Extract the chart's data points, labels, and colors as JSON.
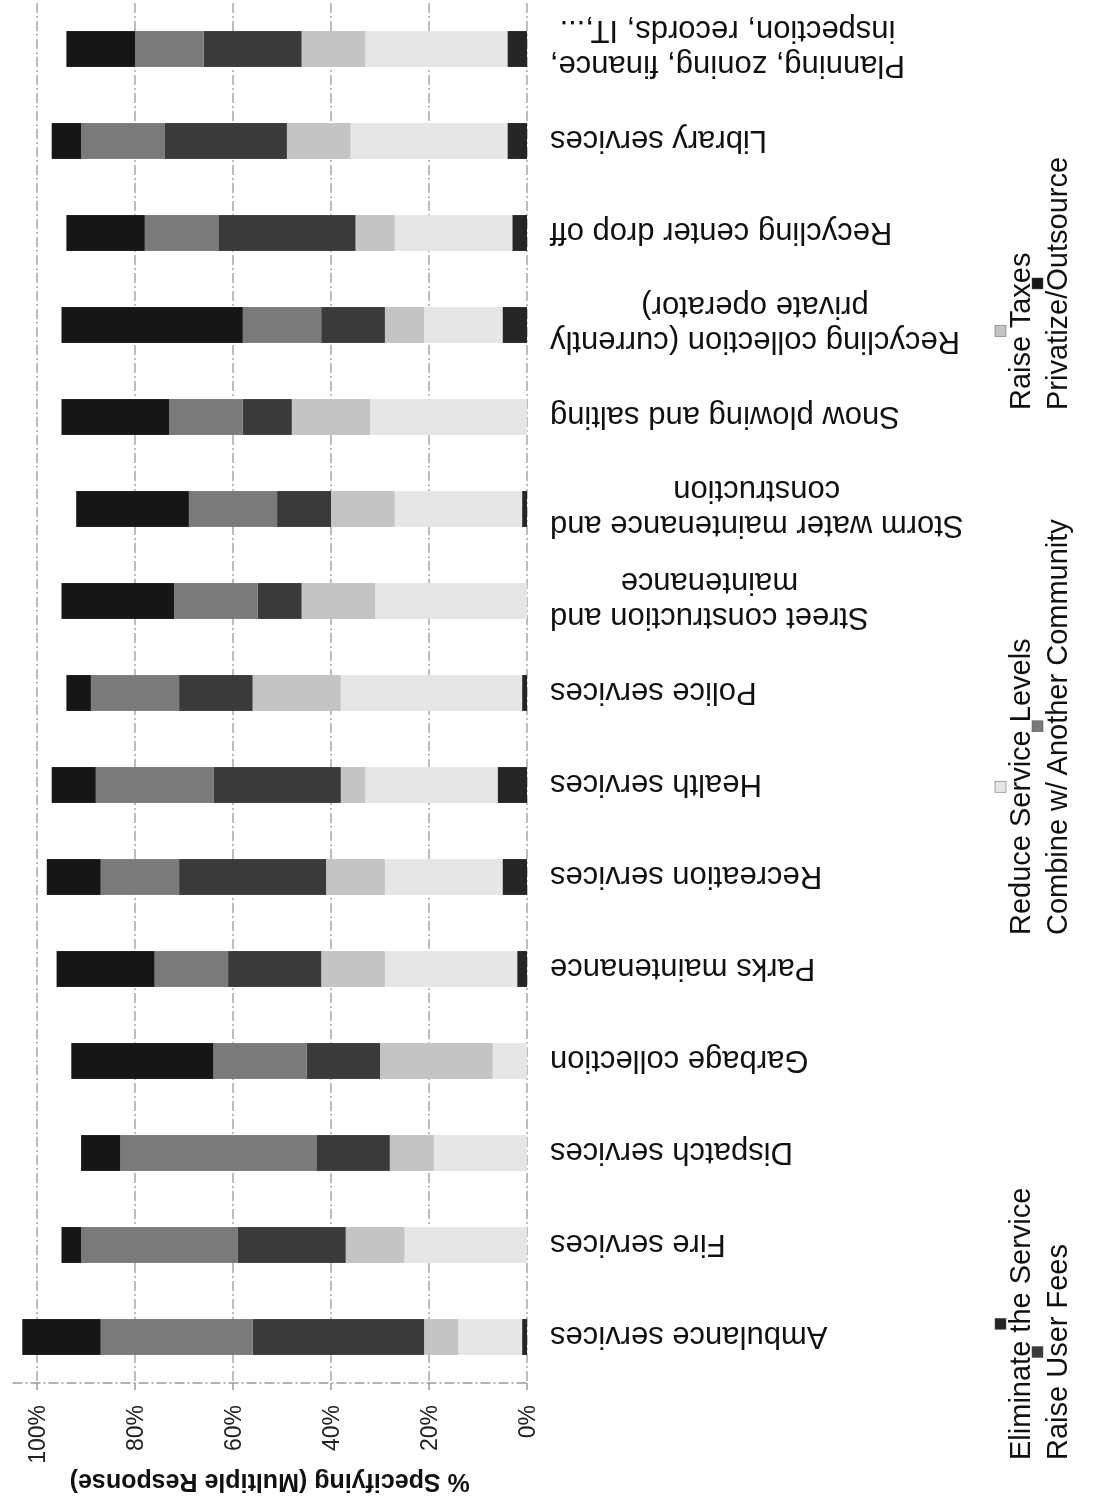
{
  "chart_data": {
    "type": "bar",
    "stacked": true,
    "orientation": "horizontal",
    "xlabel": "% Specifying (Multiple Response)",
    "categories": [
      "Planning, zoning, finance, inspection, records, IT,...",
      "Library services",
      "Recycling center drop off",
      "Recycling collection (currently private operator)",
      "Snow plowing and salting",
      "Storm water maintenance and construction",
      "Street construction and maintenance",
      "Police services",
      "Health services",
      "Recreation services",
      "Parks maintenance",
      "Garbage collection",
      "Dispatch services",
      "Fire services",
      "Ambulance services"
    ],
    "series": [
      {
        "name": "Eliminate the Service",
        "color": "#262626",
        "values": [
          4,
          4,
          3,
          5,
          0,
          1,
          0,
          1,
          6,
          5,
          2,
          0,
          0,
          0,
          1
        ]
      },
      {
        "name": "Reduce Service Levels",
        "color": "#e6e6e6",
        "values": [
          29,
          32,
          24,
          16,
          32,
          26,
          31,
          37,
          27,
          24,
          27,
          7,
          19,
          25,
          13
        ]
      },
      {
        "name": "Raise Taxes",
        "color": "#c4c4c4",
        "values": [
          13,
          13,
          8,
          8,
          16,
          13,
          15,
          18,
          5,
          12,
          13,
          23,
          9,
          12,
          7
        ]
      },
      {
        "name": "Raise User Fees",
        "color": "#3a3a3a",
        "values": [
          20,
          25,
          28,
          13,
          10,
          11,
          9,
          15,
          26,
          30,
          19,
          15,
          15,
          22,
          35
        ]
      },
      {
        "name": "Combine w/ Another Community",
        "color": "#7a7a7a",
        "values": [
          14,
          17,
          15,
          16,
          15,
          18,
          17,
          18,
          24,
          16,
          15,
          19,
          40,
          32,
          31
        ]
      },
      {
        "name": "Privatize/Outsource",
        "color": "#161616",
        "values": [
          14,
          6,
          16,
          37,
          22,
          23,
          23,
          5,
          9,
          11,
          20,
          29,
          8,
          4,
          16
        ]
      }
    ],
    "xlim": [
      105,
      0
    ],
    "xticks": [
      {
        "value": 100,
        "label": "100%"
      },
      {
        "value": 80,
        "label": "80%"
      },
      {
        "value": 60,
        "label": "60%"
      },
      {
        "value": 40,
        "label": "40%"
      },
      {
        "value": 20,
        "label": "20%"
      },
      {
        "value": 0,
        "label": "0%"
      }
    ],
    "grid": "x",
    "legend": "right"
  }
}
